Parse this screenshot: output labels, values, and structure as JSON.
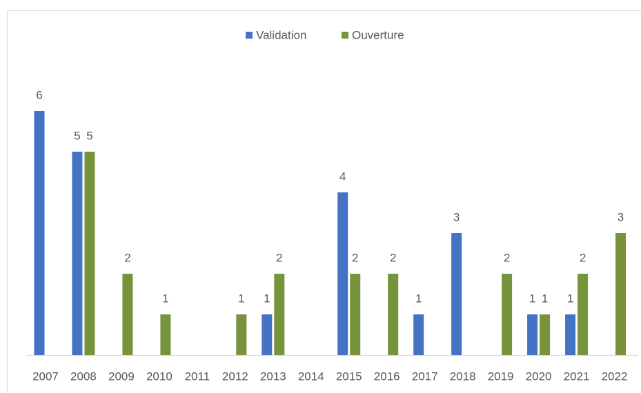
{
  "chart_data": {
    "type": "bar",
    "categories": [
      "2007",
      "2008",
      "2009",
      "2010",
      "2011",
      "2012",
      "2013",
      "2014",
      "2015",
      "2016",
      "2017",
      "2018",
      "2019",
      "2020",
      "2021",
      "2022"
    ],
    "series": [
      {
        "name": "Validation",
        "color": "#4472c4",
        "values": [
          6,
          5,
          null,
          null,
          null,
          null,
          1,
          null,
          4,
          null,
          1,
          3,
          null,
          1,
          1,
          null
        ]
      },
      {
        "name": "Ouverture",
        "color": "#77933c",
        "values": [
          null,
          5,
          2,
          1,
          null,
          1,
          2,
          null,
          2,
          2,
          null,
          null,
          2,
          1,
          2,
          3
        ]
      }
    ],
    "ylim": [
      0,
      7
    ],
    "legend": "top",
    "grid": false
  }
}
